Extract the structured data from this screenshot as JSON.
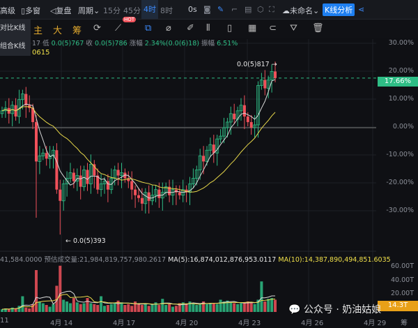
{
  "toolbar": {
    "advanced": "高级",
    "multi_window": "多窗",
    "replay": "复盘",
    "period": "周期",
    "intervals": [
      "15分",
      "45分",
      "4时",
      "8时"
    ],
    "active_interval": "4时",
    "timer": "0s",
    "layout_name": "未命名",
    "kline_analysis": "K线分析"
  },
  "indicators": {
    "main": "主",
    "big": "大",
    "chips": "筹",
    "hot_badge": "HOT"
  },
  "dropdown_menu": [
    "对比K线",
    "组合K线"
  ],
  "ohlc_info": {
    "high_partial": "17",
    "low_label": "低",
    "low": "0.0(5)767",
    "close_label": "收",
    "close": "0.0(5)786",
    "change_label": "涨幅",
    "change": "2.34%(0.0(6)18)",
    "amplitude_label": "振幅",
    "amplitude": "6.51%"
  },
  "ma_info": "0615",
  "price_axis": [
    "30.00%",
    "20.00%",
    "10.00%",
    "0.00%",
    "-10.00%",
    "-20.00%",
    "-30.00%"
  ],
  "current_price_tag": "17.66%",
  "high_marker": "0.0(5)817 →",
  "low_marker": "← 0.0(5)393",
  "volume_info": {
    "volume": "41,584.0000",
    "estimated": "预估成交量:21,984,819,757,980.2617",
    "ma5": "MA(5):16,874,012,876,953.0117",
    "ma10": "MA(10):14,387,890,494,851.6035"
  },
  "volume_axis": [
    "60.00T",
    "40.00T",
    "20.00T"
  ],
  "volume_tag": "14.3T",
  "dates": [
    "11",
    "4月 14",
    "4月 17",
    "4月 20",
    "4月 23",
    "4月 26",
    "4月 29"
  ],
  "watermark": "公众号 · 奶油姑娘",
  "bottom_right": "筹",
  "colors": {
    "up": "#2ebd85",
    "down": "#f0515a",
    "ma_short": "#d9d9d9",
    "ma_long": "#e8d84a",
    "accent": "#1e7ff0"
  },
  "chart_data": {
    "type": "candlestick",
    "y_unit": "%",
    "ylim": [
      -35,
      32
    ],
    "closes": [
      6,
      7,
      5,
      8,
      4,
      10,
      12,
      8,
      7,
      2,
      -12,
      -10,
      -9,
      -11,
      -10,
      -8,
      -22,
      -26,
      -20,
      -18,
      -16,
      -19,
      -17,
      -21,
      -15,
      -20,
      -13,
      -17,
      -22,
      -20,
      -19,
      -22,
      -18,
      -15,
      -17,
      -16,
      -18,
      -19,
      -22,
      -24,
      -25,
      -27,
      -23,
      -26,
      -24,
      -22,
      -25,
      -23,
      -21,
      -24,
      -22,
      -23,
      -24,
      -22,
      -23,
      -20,
      -18,
      -15,
      -10,
      -12,
      -8,
      -6,
      -9,
      -4,
      -3,
      0,
      2,
      5,
      3,
      6,
      8,
      4,
      2,
      0,
      1,
      15,
      17,
      14,
      17,
      20,
      17.66
    ],
    "volumes_T": [
      3,
      4,
      3,
      5,
      4,
      7,
      18,
      5,
      4,
      9,
      48,
      12,
      10,
      8,
      6,
      9,
      30,
      53,
      14,
      12,
      10,
      16,
      11,
      9,
      10,
      16,
      10,
      9,
      8,
      18,
      7,
      8,
      9,
      10,
      13,
      11,
      8,
      9,
      7,
      12,
      9,
      8,
      10,
      7,
      9,
      11,
      8,
      15,
      8,
      9,
      6,
      7,
      10,
      11,
      9,
      12,
      10,
      8,
      9,
      12,
      9,
      10,
      10,
      9,
      14,
      12,
      13,
      11,
      10,
      9,
      10,
      11,
      12,
      11,
      9,
      14,
      35,
      12,
      15,
      16,
      14
    ]
  }
}
